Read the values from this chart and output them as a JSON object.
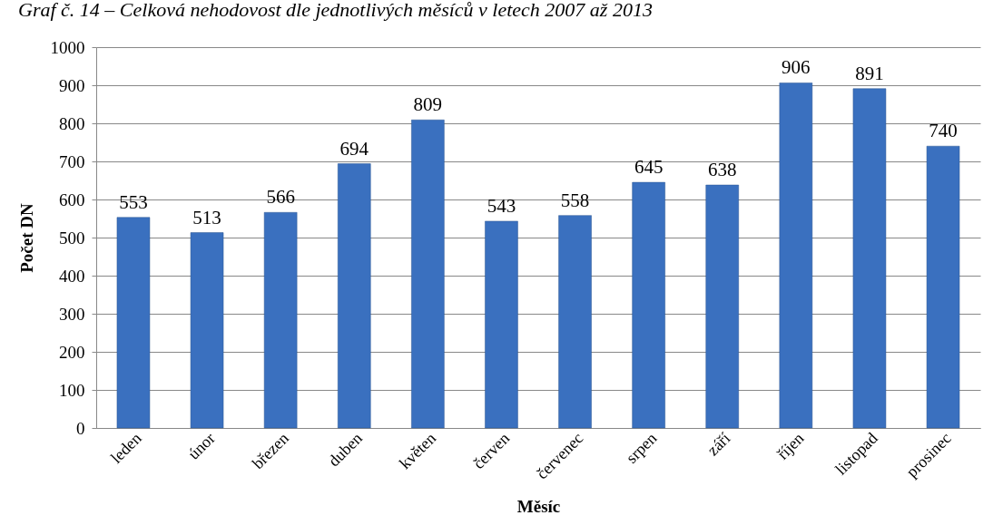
{
  "chart_data": {
    "type": "bar",
    "title": "Graf č. 14 – Celková nehodovost dle jednotlivých měsíců v letech 2007 až 2013",
    "xlabel": "Měsíc",
    "ylabel": "Počet DN",
    "categories": [
      "leden",
      "únor",
      "březen",
      "duben",
      "květen",
      "červen",
      "červenec",
      "srpen",
      "září",
      "říjen",
      "listopad",
      "prosinec"
    ],
    "values": [
      553,
      513,
      566,
      694,
      809,
      543,
      558,
      645,
      638,
      906,
      891,
      740
    ],
    "color": "#3a70bf",
    "ylim": [
      0,
      1000
    ],
    "yticks": [
      0,
      100,
      200,
      300,
      400,
      500,
      600,
      700,
      800,
      900,
      1000
    ],
    "grid": "y",
    "data_labels": true
  }
}
